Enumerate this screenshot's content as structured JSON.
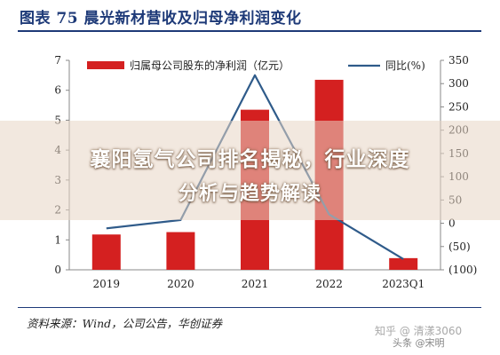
{
  "header": {
    "title": "图表 75 晨光新材营收及归母净利润变化"
  },
  "overlay": {
    "line1": "襄阳氢气公司排名揭秘，行业深度",
    "line2": "分析与趋势解读"
  },
  "footer": {
    "source": "资料来源：Wind，公司公告，华创证券",
    "watermark": "知乎 @ 清漾3060",
    "watermark_brand": "头条 @宋明"
  },
  "chart_data": {
    "type": "bar",
    "categories": [
      "2019",
      "2020",
      "2021",
      "2022",
      "2023Q1"
    ],
    "series": [
      {
        "name": "归属母公司股东的净利润（亿元）",
        "type": "bar",
        "axis": "left",
        "color": "#d42020",
        "values": [
          1.18,
          1.26,
          5.35,
          6.35,
          0.39
        ]
      },
      {
        "name": "同比(%)",
        "type": "line",
        "axis": "right",
        "color": "#2f5b8a",
        "values": [
          -11,
          7,
          318,
          19,
          -77
        ]
      }
    ],
    "ylim_left": [
      0,
      7
    ],
    "yticks_left": [
      "0",
      "1",
      "2",
      "3",
      "4",
      "5",
      "6",
      "7"
    ],
    "ylim_right": [
      -100,
      350
    ],
    "yticks_right": [
      "(100)",
      "(50)",
      "0",
      "50",
      "100",
      "150",
      "200",
      "250",
      "300",
      "350"
    ],
    "legend_position": "top",
    "grid": false
  }
}
